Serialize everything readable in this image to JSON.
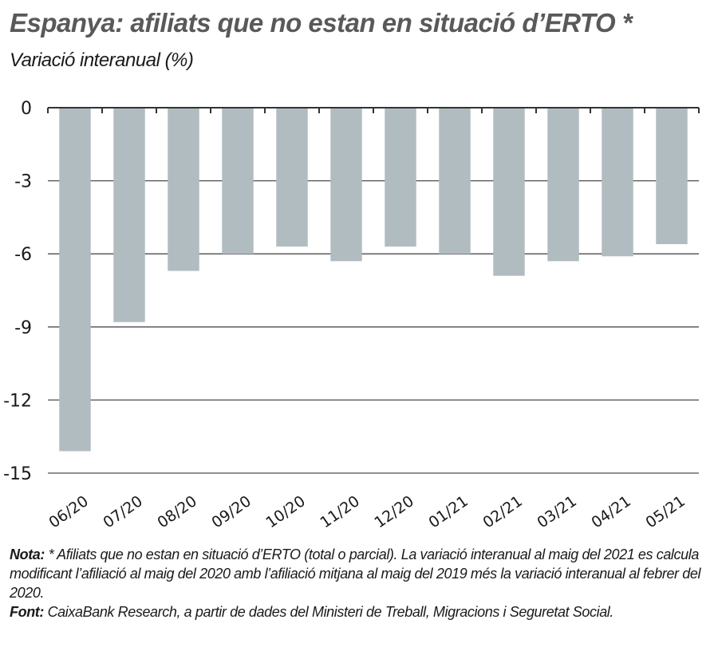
{
  "title": "Espanya: afiliats que no estan en situació d’ERTO *",
  "subtitle": "Variació interanual (%)",
  "chart_data": {
    "type": "bar",
    "title": "Espanya: afiliats que no estan en situació d’ERTO *",
    "subtitle": "Variació interanual (%)",
    "xlabel": "",
    "ylabel": "Variació interanual (%)",
    "categories": [
      "06/20",
      "07/20",
      "08/20",
      "09/20",
      "10/20",
      "11/20",
      "12/20",
      "01/21",
      "02/21",
      "03/21",
      "04/21",
      "05/21"
    ],
    "series": [
      {
        "name": "Afiliats que no estan en situació d’ERTO",
        "values": [
          -14.1,
          -8.8,
          -6.7,
          -6.0,
          -5.7,
          -6.3,
          -5.7,
          -6.0,
          -6.9,
          -6.3,
          -6.1,
          -5.6
        ]
      }
    ],
    "ylim": [
      -15,
      0
    ],
    "yticks": [
      0,
      -3,
      -6,
      -9,
      -12,
      -15
    ],
    "ytick_labels": [
      "0",
      "-3",
      "-6",
      "-9",
      "-12",
      "-15"
    ],
    "grid": true,
    "legend": "none",
    "bar_color": "#b1bcc1",
    "grid_color": "#4d4d4d"
  },
  "notes": {
    "nota_label": "Nota:",
    "nota_text": " * Afiliats que no estan en situació d’ERTO (total o parcial). La variació interanual al maig del 2021 es calcula modificant l’afiliació al maig del 2020 amb l’afiliació mitjana al maig del 2019 més la variació interanual al febrer del 2020.",
    "font_label": "Font:",
    "font_text": " CaixaBank Research, a partir de dades del Ministeri de Treball, Migracions i Seguretat Social."
  }
}
